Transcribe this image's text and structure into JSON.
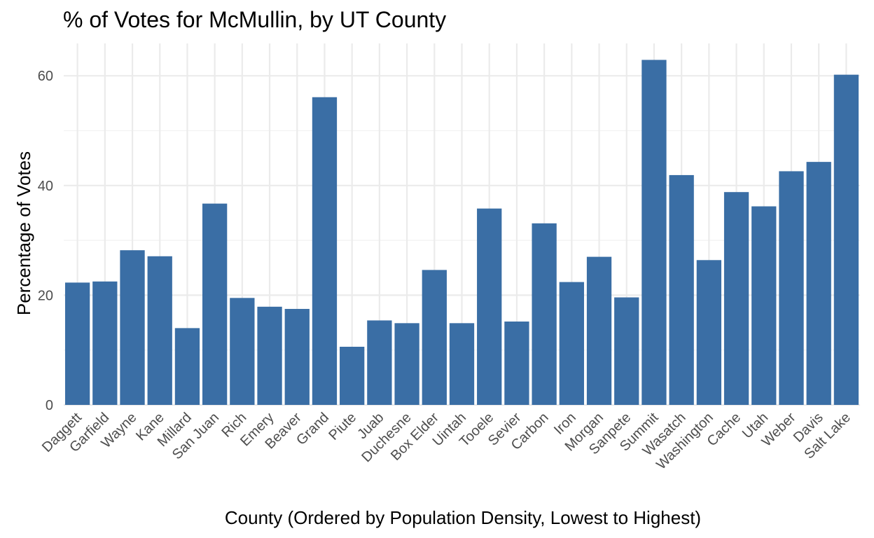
{
  "chart_data": {
    "type": "bar",
    "title": "% of Votes for McMullin, by UT County",
    "xlabel": "County (Ordered by Population Density, Lowest to Highest)",
    "ylabel": "Percentage of Votes",
    "categories": [
      "Daggett",
      "Garfield",
      "Wayne",
      "Kane",
      "Millard",
      "San Juan",
      "Rich",
      "Emery",
      "Beaver",
      "Grand",
      "Piute",
      "Juab",
      "Duchesne",
      "Box Elder",
      "Uintah",
      "Tooele",
      "Sevier",
      "Carbon",
      "Iron",
      "Morgan",
      "Sanpete",
      "Summit",
      "Wasatch",
      "Washington",
      "Cache",
      "Utah",
      "Weber",
      "Davis",
      "Salt Lake"
    ],
    "values": [
      22.3,
      22.5,
      28.2,
      27.1,
      14.0,
      36.7,
      19.5,
      17.9,
      17.5,
      56.1,
      10.6,
      15.4,
      14.9,
      24.6,
      14.9,
      35.8,
      15.2,
      33.1,
      22.4,
      27.0,
      19.6,
      62.9,
      41.9,
      26.4,
      38.8,
      36.2,
      42.6,
      44.3,
      60.2
    ],
    "yticks": [
      0,
      20,
      40,
      60
    ],
    "ylim": [
      0,
      65.9
    ],
    "bar_color": "#3a6ea5",
    "grid": true,
    "legend": "none"
  }
}
